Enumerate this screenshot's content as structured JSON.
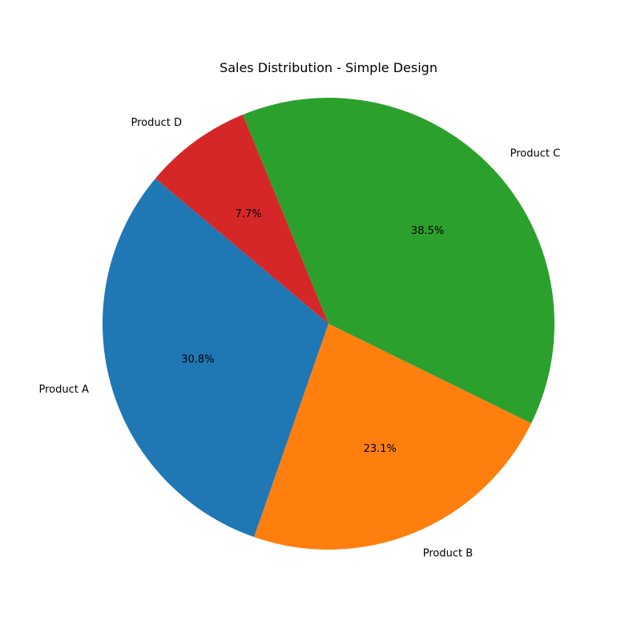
{
  "chart_data": {
    "type": "pie",
    "title": "Sales Distribution - Simple Design",
    "categories": [
      "Product A",
      "Product B",
      "Product C",
      "Product D"
    ],
    "values": [
      30.8,
      23.1,
      38.5,
      7.7
    ],
    "percent_labels": [
      "30.8%",
      "23.1%",
      "38.5%",
      "7.7%"
    ],
    "colors": [
      "#1f77b4",
      "#ff7f0e",
      "#2ca02c",
      "#d62728"
    ],
    "start_angle_deg": 140,
    "direction": "counterclockwise",
    "legend": "none"
  }
}
